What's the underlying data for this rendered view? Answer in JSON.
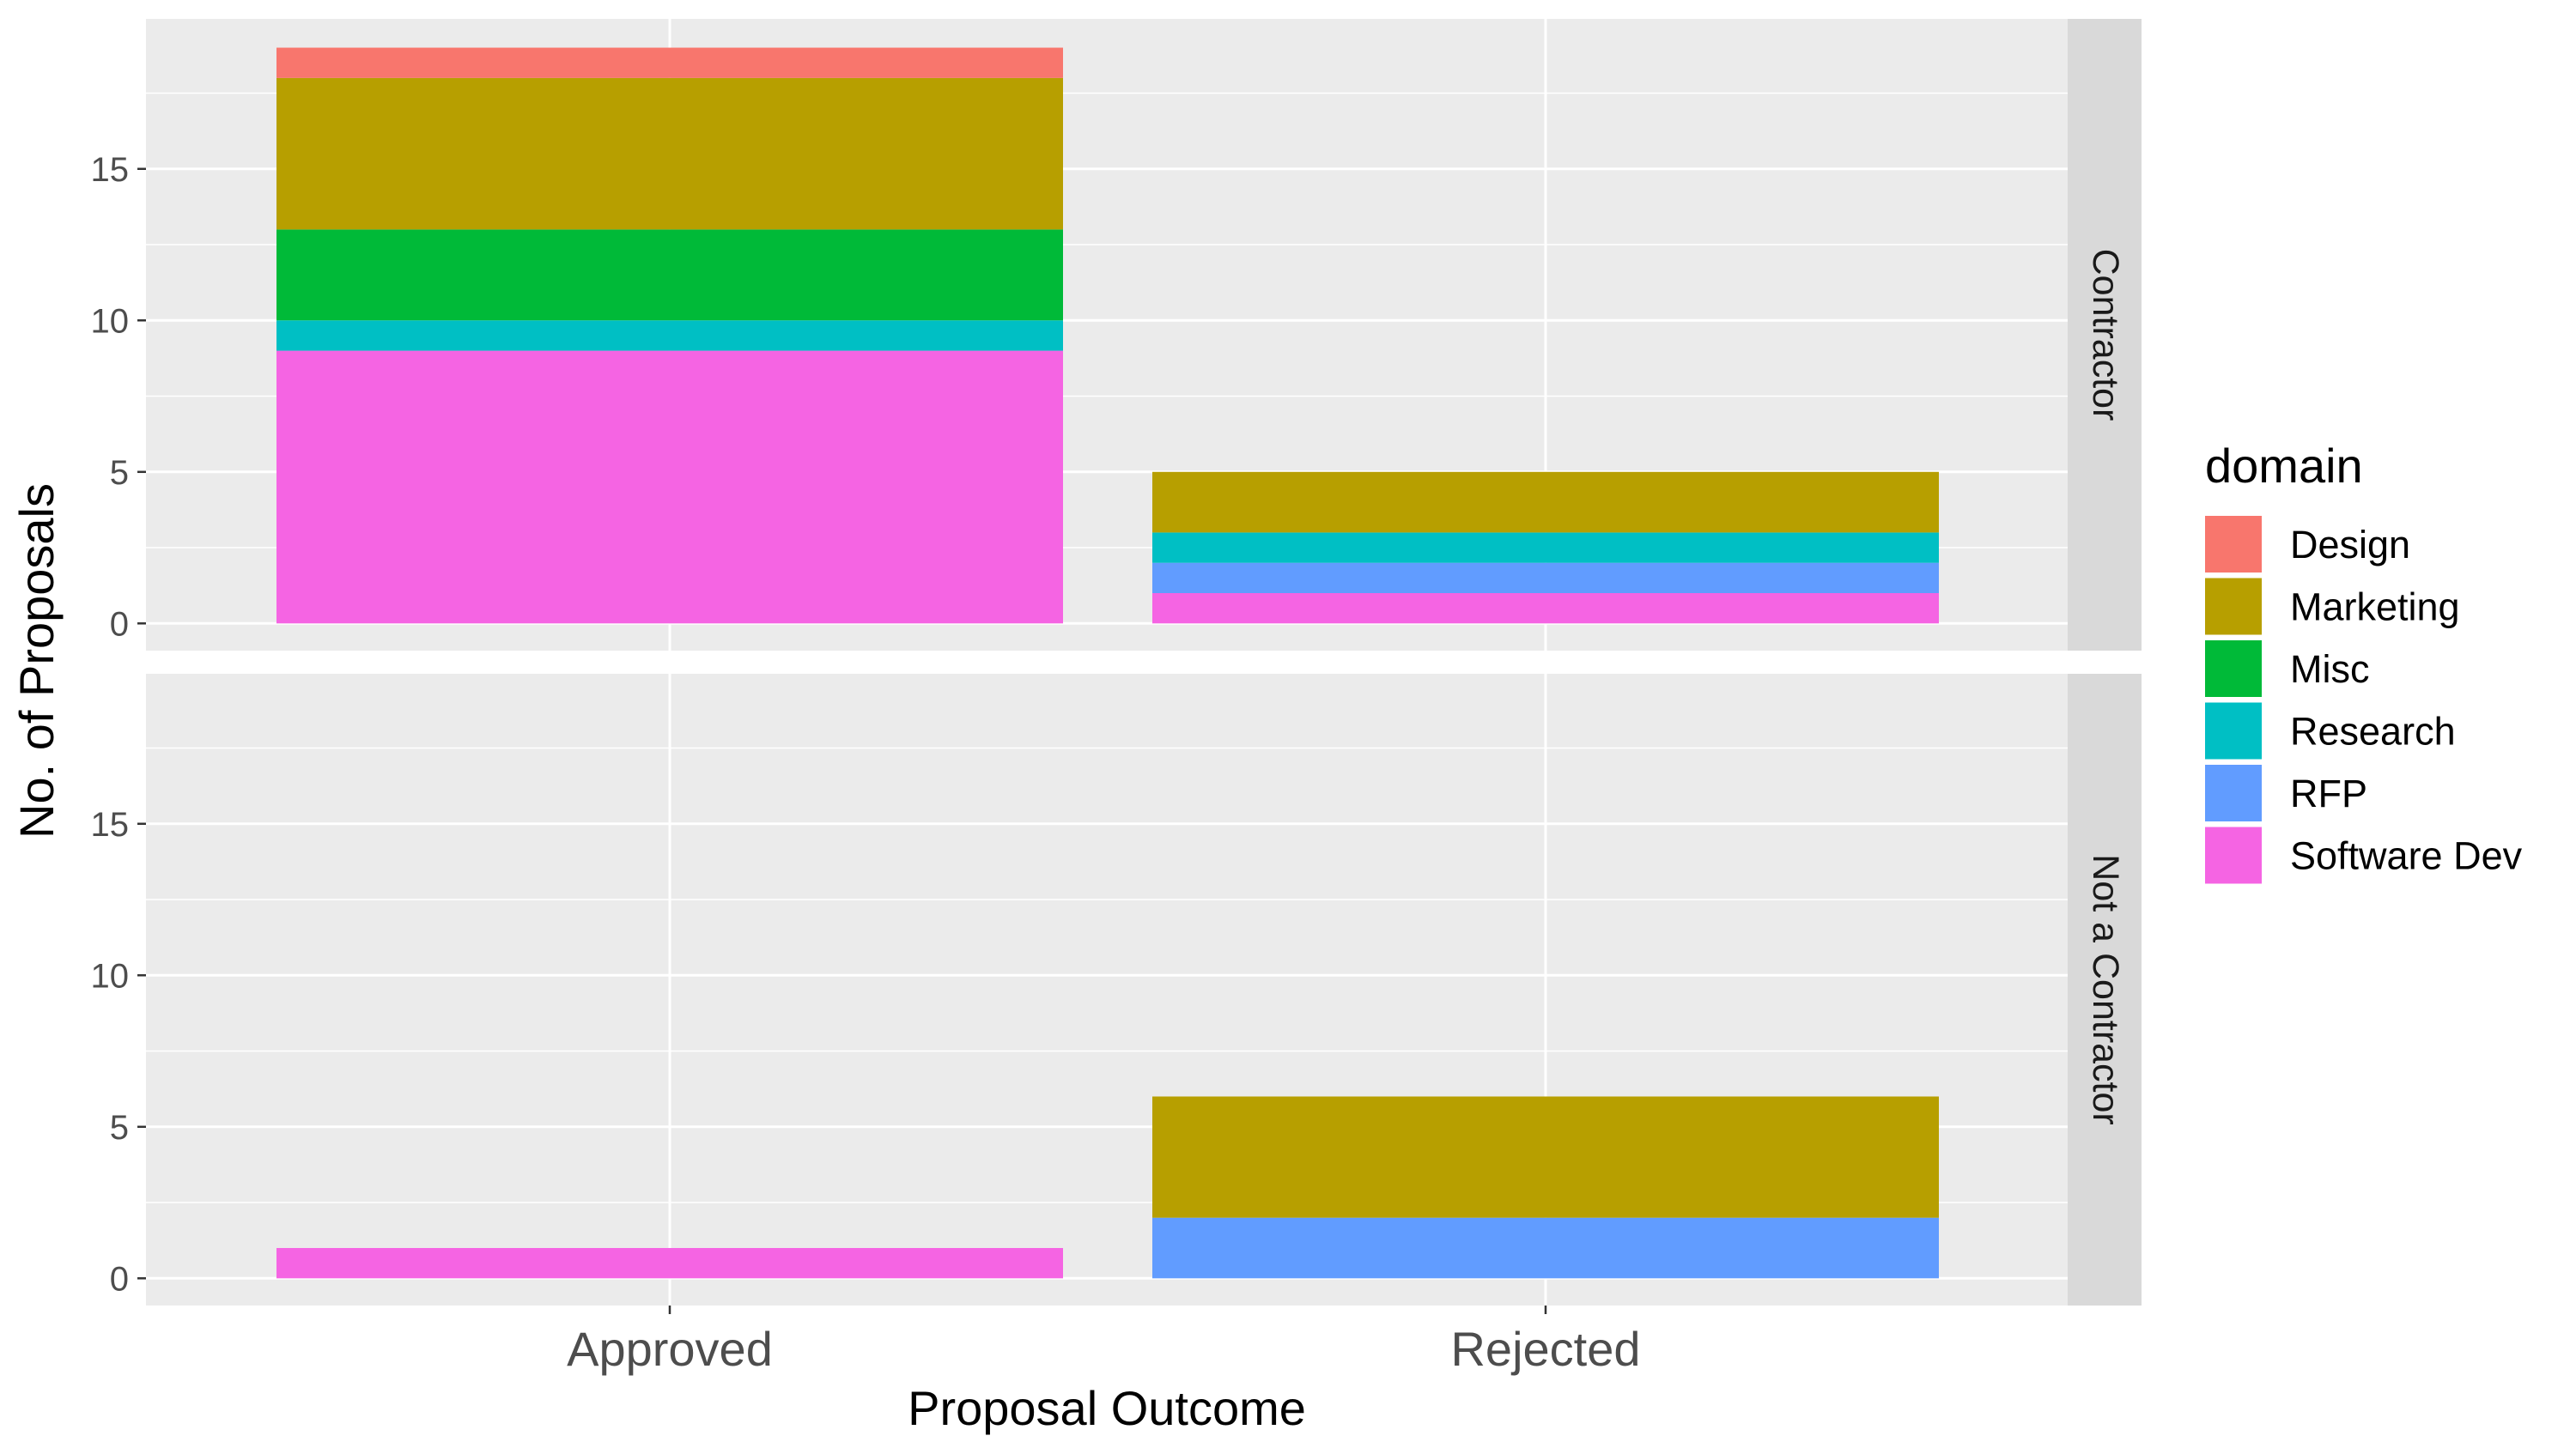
{
  "chart_data": {
    "type": "bar",
    "stacked": true,
    "xlabel": "Proposal Outcome",
    "ylabel": "No. of Proposals",
    "categories": [
      "Approved",
      "Rejected"
    ],
    "ylim": [
      0,
      19.95
    ],
    "yticks": [
      0,
      5,
      10,
      15
    ],
    "grid": true,
    "legend": {
      "title": "domain",
      "position": "right",
      "items": [
        {
          "name": "Design",
          "color": "#F8766D"
        },
        {
          "name": "Marketing",
          "color": "#B79F00"
        },
        {
          "name": "Misc",
          "color": "#00BA38"
        },
        {
          "name": "Research",
          "color": "#00BFC4"
        },
        {
          "name": "RFP",
          "color": "#619CFF"
        },
        {
          "name": "Software Dev",
          "color": "#F564E3"
        }
      ]
    },
    "stack_order": [
      "Software Dev",
      "RFP",
      "Research",
      "Misc",
      "Marketing",
      "Design"
    ],
    "facets": [
      {
        "label": "Contractor",
        "series": [
          {
            "name": "Design",
            "values": [
              1,
              0
            ]
          },
          {
            "name": "Marketing",
            "values": [
              5,
              2
            ]
          },
          {
            "name": "Misc",
            "values": [
              3,
              0
            ]
          },
          {
            "name": "Research",
            "values": [
              1,
              1
            ]
          },
          {
            "name": "RFP",
            "values": [
              0,
              1
            ]
          },
          {
            "name": "Software Dev",
            "values": [
              9,
              1
            ]
          }
        ]
      },
      {
        "label": "Not a Contractor",
        "series": [
          {
            "name": "Design",
            "values": [
              0,
              0
            ]
          },
          {
            "name": "Marketing",
            "values": [
              0,
              4
            ]
          },
          {
            "name": "Misc",
            "values": [
              0,
              0
            ]
          },
          {
            "name": "Research",
            "values": [
              0,
              0
            ]
          },
          {
            "name": "RFP",
            "values": [
              0,
              2
            ]
          },
          {
            "name": "Software Dev",
            "values": [
              1,
              0
            ]
          }
        ]
      }
    ]
  }
}
